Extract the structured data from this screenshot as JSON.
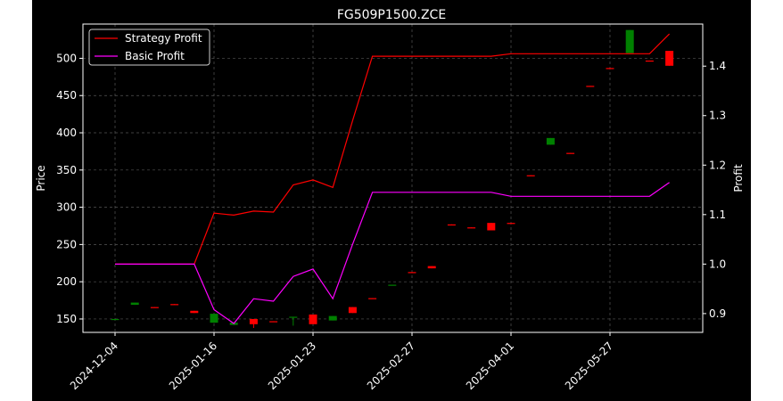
{
  "chart_data": {
    "type": "candlestick-with-lines",
    "title": "FG509P1500.ZCE",
    "ylabel_left": "Price",
    "ylabel_right": "Profit",
    "ylim_left": [
      132,
      546
    ],
    "ylim_right": [
      0.862,
      1.485
    ],
    "yticks_left": [
      150,
      200,
      250,
      300,
      350,
      400,
      450,
      500
    ],
    "yticks_right": [
      "0.9",
      "1.0",
      "1.1",
      "1.2",
      "1.3",
      "1.4"
    ],
    "ytick_values_right": [
      0.9,
      1.0,
      1.1,
      1.2,
      1.3,
      1.4
    ],
    "x_tick_labels": [
      "2024-12-04",
      "2025-01-16",
      "2025-01-23",
      "2025-02-27",
      "2025-04-01",
      "2025-05-27"
    ],
    "x_tick_positions": [
      0,
      5,
      10,
      15,
      20,
      25
    ],
    "grid": true,
    "legend": {
      "position": "top-left",
      "items": [
        {
          "label": "Strategy Profit",
          "color": "#ff0000"
        },
        {
          "label": "Basic Profit",
          "color": "#ff00ff"
        }
      ]
    },
    "candles": [
      {
        "i": 0,
        "open": 150,
        "close": 150,
        "high": 150,
        "low": 150
      },
      {
        "i": 1,
        "open": 169,
        "close": 172,
        "high": 172,
        "low": 169
      },
      {
        "i": 2,
        "open": 166,
        "close": 165,
        "high": 166,
        "low": 165
      },
      {
        "i": 3,
        "open": 170,
        "close": 169,
        "high": 170,
        "low": 169
      },
      {
        "i": 4,
        "open": 161,
        "close": 158,
        "high": 161,
        "low": 158
      },
      {
        "i": 5,
        "open": 145,
        "close": 157,
        "high": 157,
        "low": 145
      },
      {
        "i": 6,
        "open": 142,
        "close": 145,
        "high": 145,
        "low": 142
      },
      {
        "i": 7,
        "open": 150,
        "close": 143,
        "high": 150,
        "low": 138
      },
      {
        "i": 8,
        "open": 147,
        "close": 146,
        "high": 147,
        "low": 146
      },
      {
        "i": 9,
        "open": 152,
        "close": 153,
        "high": 153,
        "low": 141
      },
      {
        "i": 10,
        "open": 156,
        "close": 143,
        "high": 156,
        "low": 143
      },
      {
        "i": 11,
        "open": 148,
        "close": 154,
        "high": 154,
        "low": 148
      },
      {
        "i": 12,
        "open": 166,
        "close": 158,
        "high": 166,
        "low": 158
      },
      {
        "i": 13,
        "open": 178,
        "close": 177,
        "high": 178,
        "low": 177
      },
      {
        "i": 14,
        "open": 195,
        "close": 196,
        "high": 196,
        "low": 195
      },
      {
        "i": 15,
        "open": 213,
        "close": 212,
        "high": 213,
        "low": 212
      },
      {
        "i": 16,
        "open": 221,
        "close": 218,
        "high": 221,
        "low": 218
      },
      {
        "i": 17,
        "open": 277,
        "close": 276,
        "high": 277,
        "low": 276
      },
      {
        "i": 18,
        "open": 273,
        "close": 272,
        "high": 273,
        "low": 272
      },
      {
        "i": 19,
        "open": 279,
        "close": 269,
        "high": 279,
        "low": 269
      },
      {
        "i": 20,
        "open": 279,
        "close": 278,
        "high": 279,
        "low": 278
      },
      {
        "i": 21,
        "open": 343,
        "close": 342,
        "high": 343,
        "low": 342
      },
      {
        "i": 22,
        "open": 384,
        "close": 393,
        "high": 393,
        "low": 384
      },
      {
        "i": 23,
        "open": 373,
        "close": 372,
        "high": 373,
        "low": 372
      },
      {
        "i": 24,
        "open": 463,
        "close": 462,
        "high": 463,
        "low": 462
      },
      {
        "i": 25,
        "open": 487,
        "close": 486,
        "high": 487,
        "low": 486
      },
      {
        "i": 26,
        "open": 507,
        "close": 538,
        "high": 538,
        "low": 507
      },
      {
        "i": 27,
        "open": 497,
        "close": 496,
        "high": 497,
        "low": 496
      },
      {
        "i": 28,
        "open": 510,
        "close": 490,
        "high": 510,
        "low": 490
      }
    ],
    "series": [
      {
        "name": "Strategy Profit",
        "color": "#ff0000",
        "x": [
          0,
          1,
          2,
          3,
          4,
          5,
          6,
          7,
          8,
          9,
          10,
          11,
          12,
          13,
          14,
          15,
          16,
          17,
          18,
          19,
          20,
          21,
          22,
          23,
          24,
          25,
          26,
          27,
          28
        ],
        "values": [
          1.0,
          1.0,
          1.0,
          1.0,
          1.0,
          1.103,
          1.099,
          1.107,
          1.105,
          1.16,
          1.17,
          1.155,
          1.29,
          1.42,
          1.42,
          1.42,
          1.42,
          1.42,
          1.42,
          1.42,
          1.425,
          1.425,
          1.425,
          1.425,
          1.425,
          1.425,
          1.425,
          1.425,
          1.465
        ]
      },
      {
        "name": "Basic Profit",
        "color": "#ff00ff",
        "x": [
          0,
          1,
          2,
          3,
          4,
          5,
          6,
          7,
          8,
          9,
          10,
          11,
          12,
          13,
          14,
          15,
          16,
          17,
          18,
          19,
          20,
          21,
          22,
          23,
          24,
          25,
          26,
          27,
          28
        ],
        "values": [
          1.0,
          1.0,
          1.0,
          1.0,
          1.0,
          0.908,
          0.88,
          0.93,
          0.925,
          0.975,
          0.99,
          0.93,
          1.04,
          1.145,
          1.145,
          1.145,
          1.145,
          1.145,
          1.145,
          1.145,
          1.137,
          1.137,
          1.137,
          1.137,
          1.137,
          1.137,
          1.137,
          1.137,
          1.165
        ]
      }
    ]
  },
  "colors": {
    "background": "#000000",
    "foreground": "#ffffff",
    "grid": "#555555",
    "up": "#008000",
    "down": "#ff0000"
  }
}
